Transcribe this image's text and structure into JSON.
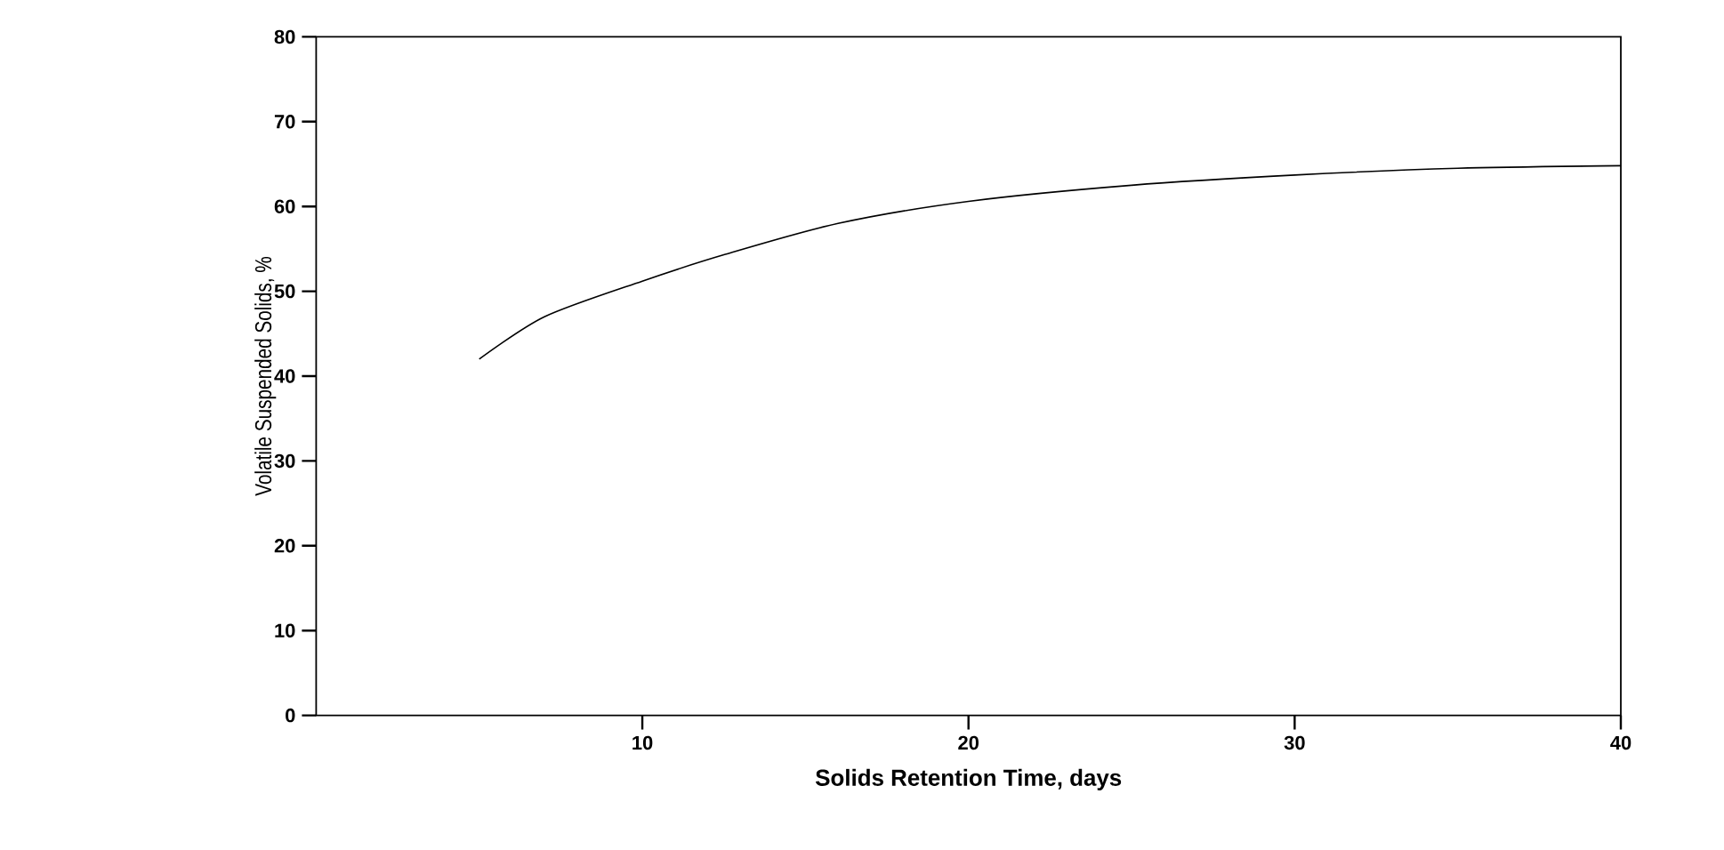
{
  "chart_data": {
    "type": "line",
    "xlabel": "Solids Retention Time, days",
    "ylabel": "Volatile Suspended Solids, %",
    "x": [
      5,
      7,
      10,
      12.5,
      16,
      20,
      25,
      30,
      35,
      40
    ],
    "series": [
      {
        "color": "#000000",
        "values": [
          42,
          47,
          51.2,
          54.3,
          58,
          60.6,
          62.5,
          63.7,
          64.5,
          64.8
        ]
      }
    ],
    "xlim": [
      0,
      40
    ],
    "xticks": [
      10,
      20,
      30,
      40
    ],
    "ylim": [
      0,
      80
    ],
    "yticks": [
      0,
      10,
      20,
      30,
      40,
      50,
      60,
      70,
      80
    ],
    "marker": "none",
    "line_style": "solid"
  }
}
